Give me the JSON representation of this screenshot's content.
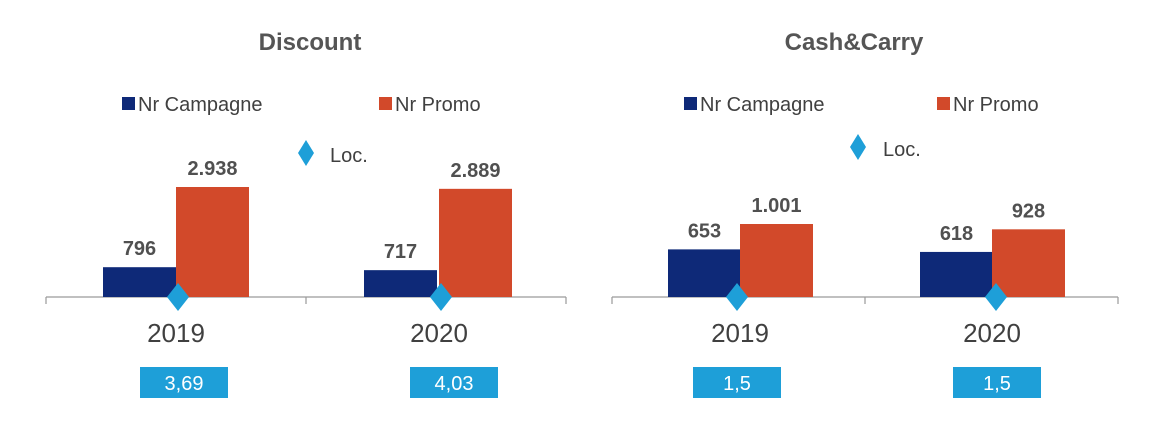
{
  "colors": {
    "campagne": "#0E2978",
    "promo": "#D2492A",
    "loc": "#1E9FD8",
    "axis": "#9A9A9A"
  },
  "chart_data": [
    {
      "type": "bar",
      "title": "Discount",
      "categories": [
        "2019",
        "2020"
      ],
      "series": [
        {
          "name": "Nr Campagne",
          "values": [
            796,
            717
          ],
          "labels": [
            "796",
            "717"
          ]
        },
        {
          "name": "Nr Promo",
          "values": [
            2938,
            2889
          ],
          "labels": [
            "2.938",
            "2.889"
          ]
        }
      ],
      "loc": {
        "name": "Loc.",
        "values": [
          3.69,
          4.03
        ],
        "labels": [
          "3,69",
          "4,03"
        ]
      },
      "ylim": [
        0,
        2938
      ]
    },
    {
      "type": "bar",
      "title": "Cash&Carry",
      "categories": [
        "2019",
        "2020"
      ],
      "series": [
        {
          "name": "Nr Campagne",
          "values": [
            653,
            618
          ],
          "labels": [
            "653",
            "618"
          ]
        },
        {
          "name": "Nr Promo",
          "values": [
            1001,
            928
          ],
          "labels": [
            "1.001",
            "928"
          ]
        }
      ],
      "loc": {
        "name": "Loc.",
        "values": [
          1.5,
          1.5
        ],
        "labels": [
          "1,5",
          "1,5"
        ]
      },
      "ylim": [
        0,
        1001
      ]
    }
  ]
}
